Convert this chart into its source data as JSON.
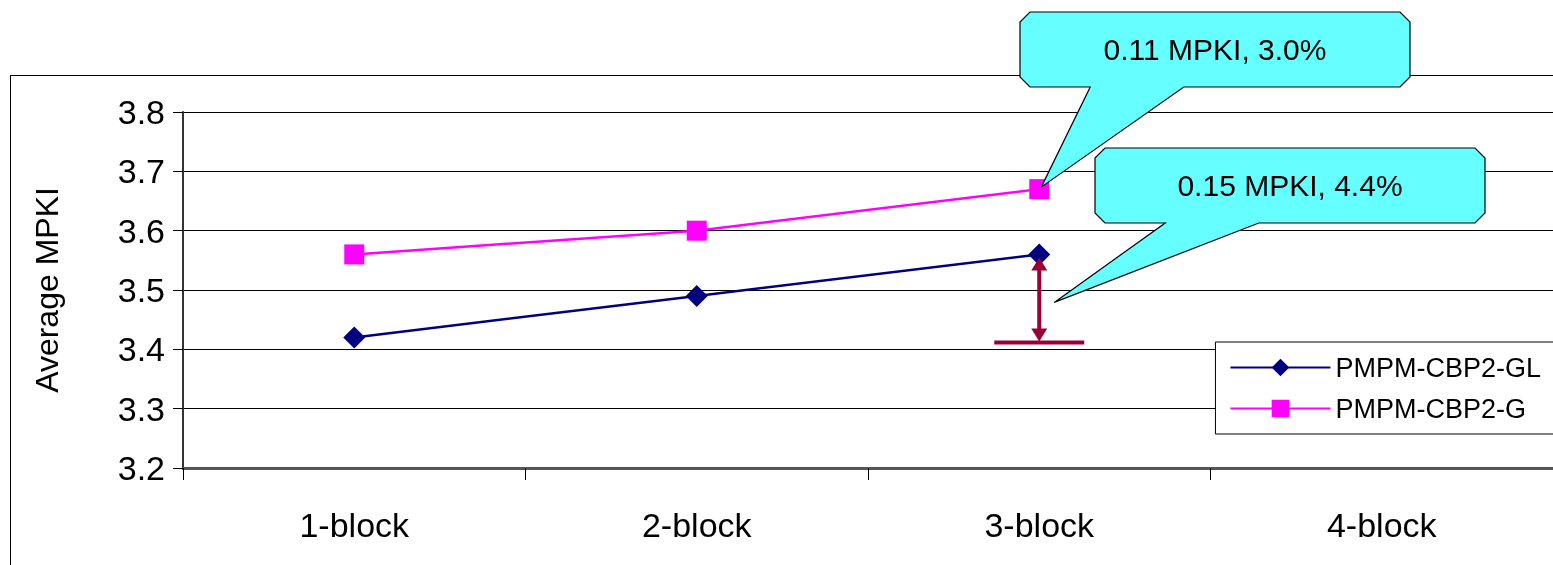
{
  "chart_data": {
    "type": "line",
    "ylabel": "Average MPKI",
    "categories": [
      "1-block",
      "2-block",
      "3-block",
      "4-block"
    ],
    "series": [
      {
        "name": "PMPM-CBP2-GL",
        "color": "#000080",
        "marker": "diamond",
        "values": [
          3.42,
          3.49,
          3.56,
          null
        ]
      },
      {
        "name": "PMPM-CBP2-G",
        "color": "#ff00ff",
        "marker": "square",
        "values": [
          3.56,
          3.6,
          3.67,
          null
        ]
      }
    ],
    "ylim": [
      3.2,
      3.8
    ],
    "yticks": [
      3.2,
      3.3,
      3.4,
      3.5,
      3.6,
      3.7,
      3.8
    ],
    "grid": "y",
    "legend": "bottom right",
    "annotations": [
      "0.11 MPKI, 3.0%",
      "0.15 MPKI, 4.4%"
    ]
  }
}
